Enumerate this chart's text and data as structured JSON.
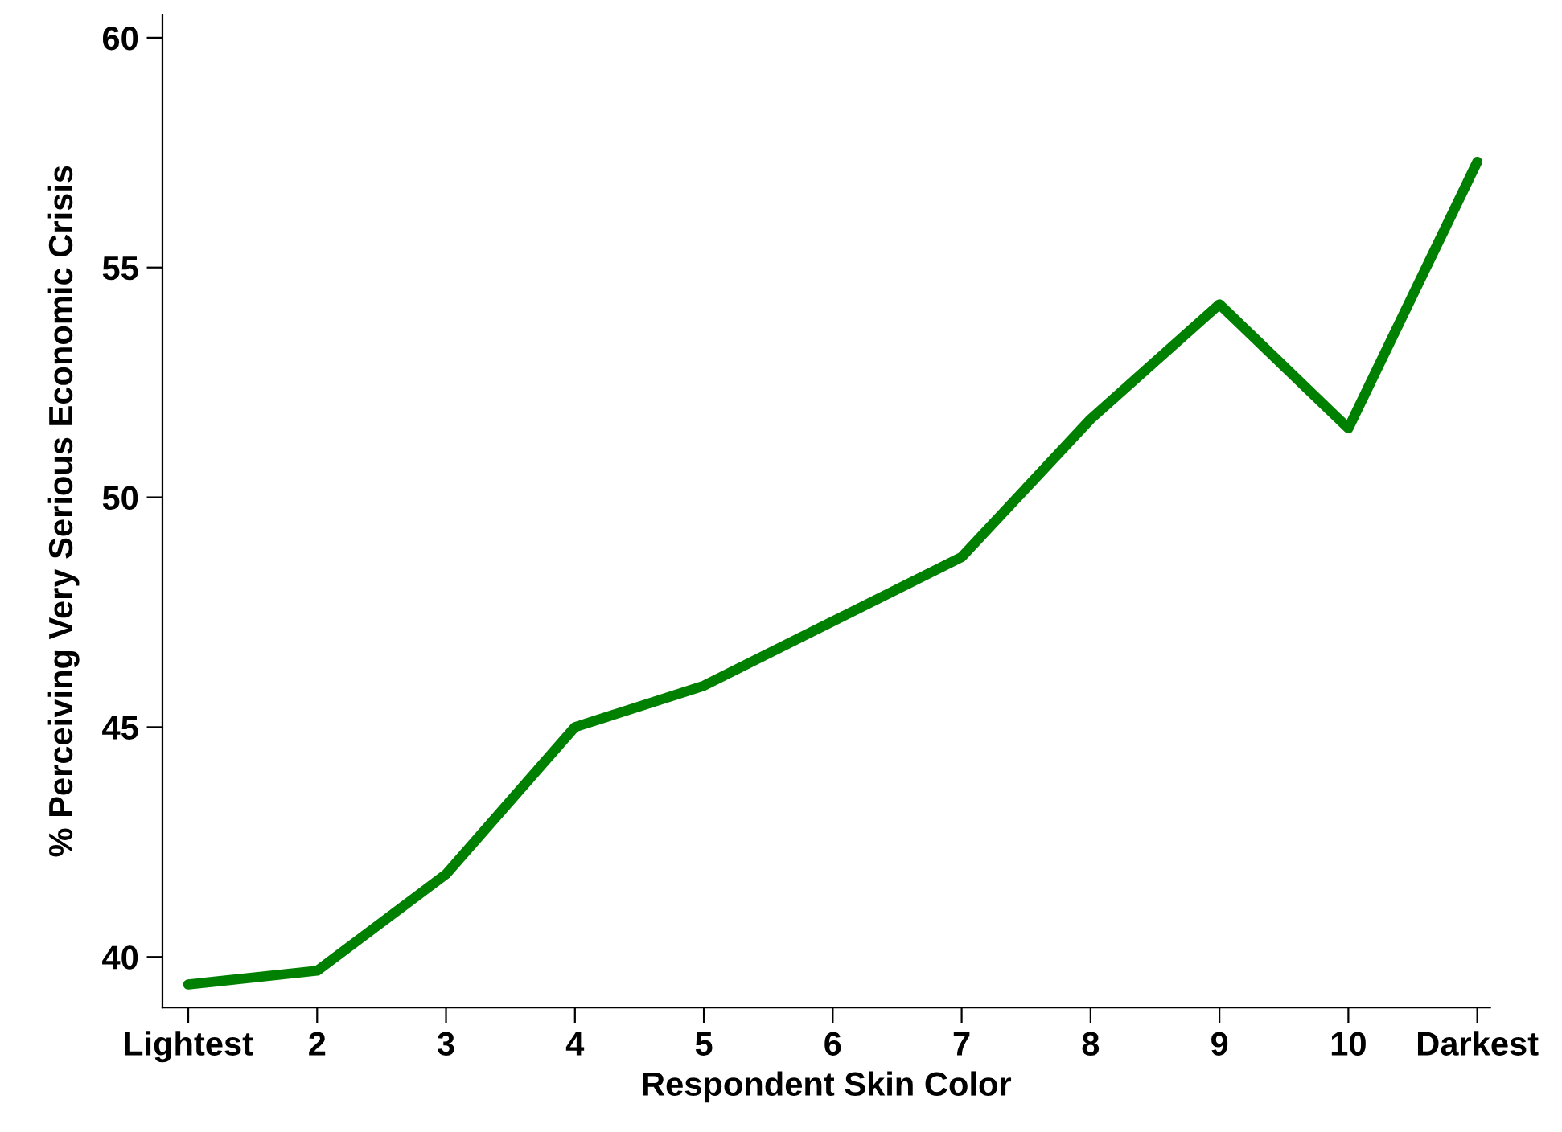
{
  "chart_data": {
    "type": "line",
    "xlabel": "Respondent Skin Color",
    "ylabel": "% Perceiving Very Serious Economic Crisis",
    "categories": [
      "Lightest",
      "2",
      "3",
      "4",
      "5",
      "6",
      "7",
      "8",
      "9",
      "10",
      "Darkest"
    ],
    "series": [
      {
        "color": "#008000",
        "values": [
          39.4,
          39.7,
          41.8,
          45.0,
          45.9,
          47.3,
          48.7,
          51.7,
          54.2,
          51.5,
          57.3
        ]
      }
    ],
    "ylim": [
      38.9,
      60.5
    ],
    "yticks": [
      40,
      45,
      50,
      55,
      60
    ],
    "grid": false,
    "legend": false,
    "marker": "none",
    "line_style": "solid"
  }
}
